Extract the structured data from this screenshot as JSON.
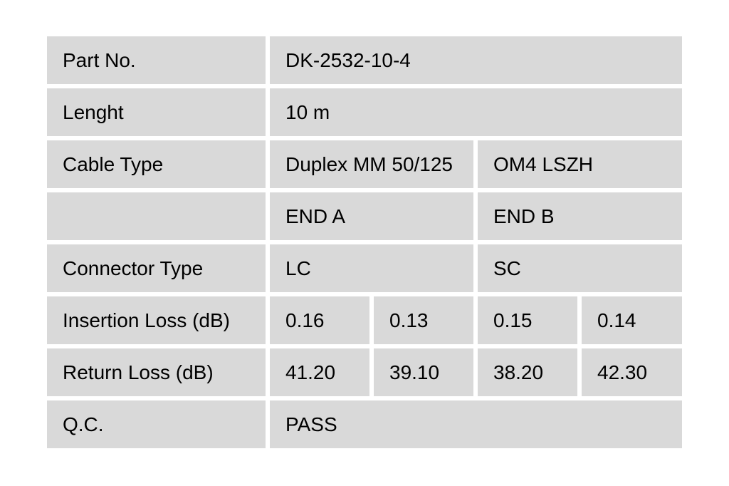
{
  "page": {
    "background_color": "#ffffff",
    "cell_background_color": "#d9d9d9",
    "text_color": "#000000"
  },
  "table": {
    "rows": [
      {
        "label": "Part No.",
        "values": [
          "DK-2532-10-4"
        ]
      },
      {
        "label": "Lenght",
        "values": [
          "10 m"
        ]
      },
      {
        "label": "Cable Type",
        "values": [
          "Duplex MM 50/125",
          "OM4 LSZH"
        ]
      },
      {
        "label": "",
        "values": [
          "END A",
          "END B"
        ]
      },
      {
        "label": "Connector Type",
        "values": [
          "LC",
          "SC"
        ]
      },
      {
        "label": "Insertion Loss (dB)",
        "values": [
          "0.16",
          "0.13",
          "0.15",
          "0.14"
        ]
      },
      {
        "label": "Return Loss (dB)",
        "values": [
          "41.20",
          "39.10",
          "38.20",
          "42.30"
        ]
      },
      {
        "label": "Q.C.",
        "values": [
          "PASS"
        ]
      }
    ]
  }
}
